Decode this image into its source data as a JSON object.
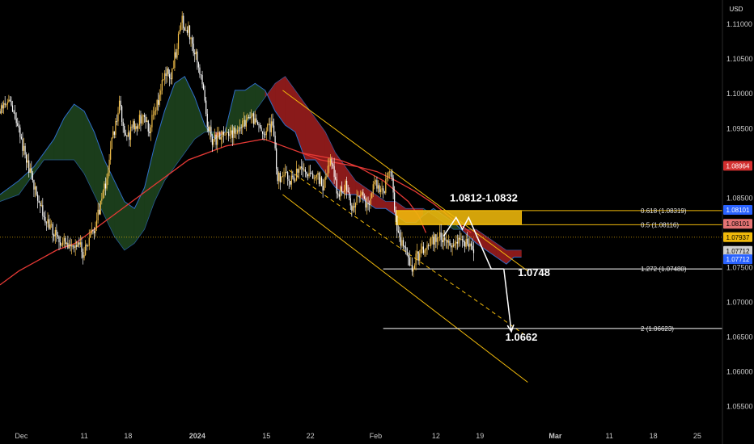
{
  "chart_data": {
    "type": "candlestick",
    "currency": "USD",
    "price_axis_ticks": [
      1.11,
      1.105,
      1.1,
      1.095,
      1.085,
      1.075,
      1.07,
      1.065,
      1.06,
      1.055
    ],
    "price_axis_tick_labels": [
      "1.11000",
      "1.10500",
      "1.10000",
      "1.09500",
      "1.08500",
      "1.07500",
      "1.07000",
      "1.06500",
      "1.06000",
      "1.05500"
    ],
    "ylim": [
      1.0517,
      1.1135
    ],
    "date_ticks": [
      {
        "label": "Dec",
        "t": 2
      },
      {
        "label": "11",
        "t": 52
      },
      {
        "label": "18",
        "t": 87
      },
      {
        "label": "2024",
        "t": 142,
        "bold": true
      },
      {
        "label": "15",
        "t": 197
      },
      {
        "label": "22",
        "t": 232
      },
      {
        "label": "Feb",
        "t": 284
      },
      {
        "label": "12",
        "t": 332
      },
      {
        "label": "19",
        "t": 367
      },
      {
        "label": "Mar",
        "t": 427,
        "bold": true
      },
      {
        "label": "11",
        "t": 470
      },
      {
        "label": "18",
        "t": 505
      },
      {
        "label": "25",
        "t": 540
      }
    ],
    "tlim": [
      -15,
      560
    ],
    "last_candle_t": 362,
    "price_path": [
      [
        -15,
        1.0975
      ],
      [
        -8,
        1.099
      ],
      [
        -3,
        1.0965
      ],
      [
        3,
        1.0925
      ],
      [
        8,
        1.089
      ],
      [
        15,
        1.085
      ],
      [
        22,
        1.0815
      ],
      [
        28,
        1.08
      ],
      [
        33,
        1.079
      ],
      [
        40,
        1.0775
      ],
      [
        46,
        1.0785
      ],
      [
        52,
        1.077
      ],
      [
        58,
        1.0795
      ],
      [
        64,
        1.0835
      ],
      [
        70,
        1.088
      ],
      [
        75,
        1.094
      ],
      [
        80,
        1.0985
      ],
      [
        86,
        1.0935
      ],
      [
        92,
        1.0955
      ],
      [
        98,
        1.0965
      ],
      [
        104,
        1.095
      ],
      [
        110,
        1.0985
      ],
      [
        116,
        1.103
      ],
      [
        121,
        1.1025
      ],
      [
        126,
        1.107
      ],
      [
        130,
        1.1105
      ],
      [
        134,
        1.1095
      ],
      [
        138,
        1.1075
      ],
      [
        142,
        1.1045
      ],
      [
        146,
        1.101
      ],
      [
        150,
        1.096
      ],
      [
        154,
        1.0935
      ],
      [
        158,
        1.0935
      ],
      [
        165,
        1.094
      ],
      [
        172,
        1.0945
      ],
      [
        178,
        1.0955
      ],
      [
        184,
        1.097
      ],
      [
        190,
        1.095
      ],
      [
        196,
        1.0945
      ],
      [
        202,
        1.0955
      ],
      [
        206,
        1.088
      ],
      [
        212,
        1.0885
      ],
      [
        218,
        1.0875
      ],
      [
        224,
        1.0895
      ],
      [
        230,
        1.0885
      ],
      [
        236,
        1.0885
      ],
      [
        242,
        1.0865
      ],
      [
        248,
        1.0905
      ],
      [
        254,
        1.0855
      ],
      [
        260,
        1.087
      ],
      [
        266,
        1.0835
      ],
      [
        272,
        1.0855
      ],
      [
        278,
        1.0835
      ],
      [
        284,
        1.0875
      ],
      [
        290,
        1.0855
      ],
      [
        296,
        1.0895
      ],
      [
        300,
        1.082
      ],
      [
        304,
        1.0785
      ],
      [
        308,
        1.077
      ],
      [
        312,
        1.0745
      ],
      [
        316,
        1.0765
      ],
      [
        322,
        1.0775
      ],
      [
        328,
        1.0785
      ],
      [
        334,
        1.0795
      ],
      [
        340,
        1.0785
      ],
      [
        346,
        1.0785
      ],
      [
        352,
        1.0795
      ],
      [
        358,
        1.078
      ],
      [
        362,
        1.0775
      ]
    ],
    "candle_seed": 20240201,
    "ema_path": [
      [
        -15,
        1.0725
      ],
      [
        0,
        1.0745
      ],
      [
        15,
        1.076
      ],
      [
        30,
        1.0775
      ],
      [
        45,
        1.0785
      ],
      [
        60,
        1.0805
      ],
      [
        75,
        1.0825
      ],
      [
        90,
        1.0845
      ],
      [
        105,
        1.0865
      ],
      [
        120,
        1.0885
      ],
      [
        135,
        1.0905
      ],
      [
        150,
        1.0915
      ],
      [
        165,
        1.0925
      ],
      [
        180,
        1.093
      ],
      [
        195,
        1.0935
      ],
      [
        210,
        1.0925
      ],
      [
        225,
        1.0915
      ],
      [
        240,
        1.091
      ],
      [
        255,
        1.0905
      ],
      [
        270,
        1.0895
      ],
      [
        280,
        1.0885
      ],
      [
        290,
        1.0875
      ],
      [
        300,
        1.086
      ],
      [
        310,
        1.0845
      ],
      [
        318,
        1.0825
      ],
      [
        324,
        1.08
      ]
    ],
    "ema_future": [
      [
        225,
        1.0915
      ],
      [
        240,
        1.0905
      ],
      [
        255,
        1.09
      ],
      [
        270,
        1.0895
      ],
      [
        285,
        1.0888
      ],
      [
        300,
        1.0875
      ],
      [
        315,
        1.086
      ],
      [
        330,
        1.0842
      ],
      [
        345,
        1.082
      ],
      [
        360,
        1.08
      ]
    ],
    "ema_color": "#e53935",
    "cloud": {
      "t": [
        -15,
        0,
        12,
        20,
        28,
        36,
        44,
        52,
        60,
        68,
        76,
        84,
        92,
        100,
        108,
        116,
        124,
        132,
        140,
        148,
        156,
        164,
        172,
        180,
        188,
        196,
        204,
        212,
        220,
        228,
        236,
        244,
        252,
        260,
        268,
        276,
        284,
        292,
        300,
        308,
        316,
        322,
        330,
        338,
        346,
        352,
        358,
        364,
        372,
        380,
        388,
        394,
        400
      ],
      "span_a": [
        1.0855,
        1.0875,
        1.0895,
        1.0915,
        1.0935,
        1.0965,
        1.0985,
        1.0975,
        1.0945,
        1.0905,
        1.0875,
        1.0845,
        1.0835,
        1.0865,
        1.0925,
        1.0975,
        1.1015,
        1.1025,
        1.0995,
        1.0955,
        1.0935,
        1.0945,
        1.1005,
        1.1005,
        1.1015,
        1.1005,
        1.0975,
        1.0955,
        1.0945,
        1.0905,
        1.0905,
        1.0885,
        1.0865,
        1.0855,
        1.0855,
        1.0845,
        1.0835,
        1.0835,
        1.0825,
        1.0815,
        1.0815,
        1.0825,
        1.0835,
        1.0825,
        1.0815,
        1.0805,
        1.0795,
        1.0785,
        1.0775,
        1.0765,
        1.0755,
        1.0765,
        1.0765
      ],
      "span_b": [
        1.0845,
        1.0855,
        1.0885,
        1.0905,
        1.0905,
        1.0905,
        1.0905,
        1.0885,
        1.0855,
        1.0825,
        1.0795,
        1.0775,
        1.0785,
        1.0805,
        1.0845,
        1.0875,
        1.0895,
        1.0915,
        1.0935,
        1.0945,
        1.0945,
        1.0945,
        1.0945,
        1.0955,
        1.0975,
        1.0995,
        1.1015,
        1.1025,
        1.1005,
        1.0985,
        1.0965,
        1.0945,
        1.0915,
        1.0895,
        1.0875,
        1.0865,
        1.0855,
        1.0845,
        1.0845,
        1.0835,
        1.0835,
        1.0835,
        1.0825,
        1.0815,
        1.0805,
        1.0805,
        1.0805,
        1.0805,
        1.0795,
        1.0785,
        1.0775,
        1.0775,
        1.0775
      ],
      "bull_color": "#1b3d1b",
      "bear_color": "#8a1a1a",
      "edge_color": "#2e6cc7"
    },
    "channel": {
      "upper": [
        [
          210,
          1.1005
        ],
        [
          405,
          1.0745
        ]
      ],
      "lower": [
        [
          210,
          1.0855
        ],
        [
          405,
          1.0585
        ]
      ],
      "mid": [
        [
          215,
          1.089
        ],
        [
          290,
          1.0795
        ],
        [
          370,
          1.0695
        ],
        [
          405,
          1.065
        ]
      ],
      "color": "#f0b90b"
    },
    "zone": {
      "label": "1.0812-1.0832",
      "t_start": 300,
      "t_end": 400,
      "price_low": 1.0812,
      "price_high": 1.0832,
      "color": "#f0b90b"
    },
    "fib_levels": [
      {
        "label": "0.618 (1.08319)",
        "price": 1.08319,
        "color": "#f0b90b",
        "t_start": 300
      },
      {
        "label": "0.5 (1.08116)",
        "price": 1.08116,
        "color": "#f0b90b",
        "t_start": 300
      },
      {
        "label": "1.272 (1.07480)",
        "price": 1.0748,
        "color": "#ffffff",
        "t_start": 290
      },
      {
        "label": "2 (1.06623)",
        "price": 1.06623,
        "color": "#ffffff",
        "t_start": 290
      }
    ],
    "fib_label_t": 495,
    "current_price": 1.07937,
    "projection": [
      [
        338,
        1.0795
      ],
      [
        348,
        1.0822
      ],
      [
        353,
        1.0805
      ],
      [
        358,
        1.0822
      ],
      [
        376,
        1.0748
      ],
      [
        386,
        1.0748
      ],
      [
        392,
        1.0658
      ]
    ],
    "projection_color": "#ffffff",
    "annotations": [
      {
        "text": "1.0812-1.0832",
        "t": 370,
        "price": 1.0845
      },
      {
        "text": "1.0748",
        "t": 410,
        "price": 1.0738
      },
      {
        "text": "1.0662",
        "t": 400,
        "price": 1.0645
      }
    ],
    "price_tags": [
      {
        "text": "1.08964",
        "price": 1.08964,
        "bg": "#d32f2f",
        "fg": "#ffffff"
      },
      {
        "text": "1.08101",
        "price": 1.0833,
        "bg": "#2962ff",
        "fg": "#ffffff"
      },
      {
        "text": "1.08101",
        "price": 1.0813,
        "bg": "#e57373",
        "fg": "#000000"
      },
      {
        "text": "1.07937",
        "price": 1.07937,
        "bg": "#f0b90b",
        "fg": "#000000"
      },
      {
        "text": "1.07712",
        "price": 1.0774,
        "bg": "#cfcfcf",
        "fg": "#000000"
      },
      {
        "text": "1.07712",
        "price": 1.0762,
        "bg": "#2962ff",
        "fg": "#ffffff"
      }
    ]
  }
}
